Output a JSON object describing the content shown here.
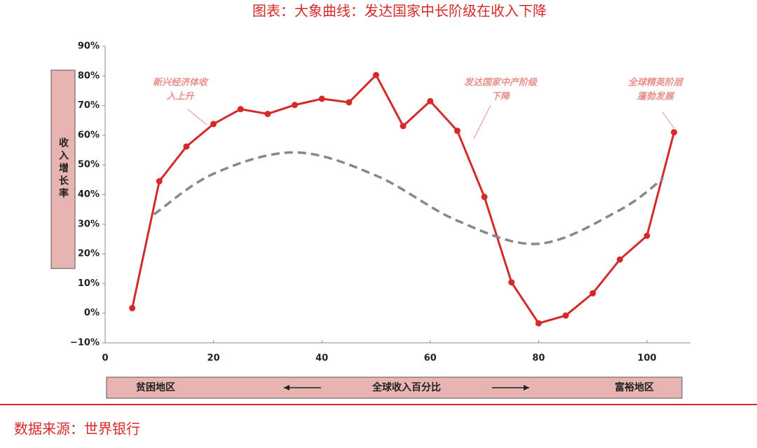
{
  "chart_data": {
    "type": "line",
    "title": "图表：大象曲线：发达国家中长阶级在收入下降",
    "ylabel": "收入增长率",
    "xlabel": "全球收入百分比",
    "x_left_label": "贫困地区",
    "x_right_label": "富裕地区",
    "source": "数据来源：世界银行",
    "xlim": [
      0,
      108
    ],
    "ylim": [
      -10,
      90
    ],
    "xticks": [
      0,
      20,
      40,
      60,
      80,
      100
    ],
    "yticks": [
      {
        "value": -10,
        "label": "−10%"
      },
      {
        "value": 0,
        "label": "0%"
      },
      {
        "value": 10,
        "label": "10%"
      },
      {
        "value": 20,
        "label": "20%"
      },
      {
        "value": 30,
        "label": "30%"
      },
      {
        "value": 40,
        "label": "40%"
      },
      {
        "value": 50,
        "label": "50%"
      },
      {
        "value": 60,
        "label": "60%"
      },
      {
        "value": 70,
        "label": "70%"
      },
      {
        "value": 80,
        "label": "80%"
      },
      {
        "value": 90,
        "label": "90%"
      }
    ],
    "series": [
      {
        "color": "#d42a2a",
        "style": "solid",
        "markers": true,
        "x": [
          5,
          10,
          15,
          20,
          25,
          30,
          35,
          40,
          45,
          50,
          55,
          60,
          65,
          70,
          75,
          80,
          85,
          90,
          95,
          100,
          105
        ],
        "values": [
          1.7,
          44.5,
          56.2,
          63.8,
          68.8,
          67.2,
          70.2,
          72.3,
          71.1,
          80.3,
          63.1,
          71.5,
          61.5,
          39.2,
          10.4,
          -3.4,
          -0.8,
          6.7,
          18.1,
          26.1,
          61
        ]
      },
      {
        "color": "#888888",
        "style": "dashed",
        "markers": false,
        "x": [
          9,
          20,
          35,
          50,
          65,
          80,
          95,
          103
        ],
        "values": [
          33.3,
          47,
          54.2,
          46.4,
          31.2,
          23.4,
          34.8,
          45.5
        ]
      }
    ],
    "annotations": [
      {
        "lines": [
          "新兴经济体收",
          "入上升"
        ]
      },
      {
        "lines": [
          "发达国家中产阶级",
          "下降"
        ]
      },
      {
        "lines": [
          "全球精英阶层",
          "蓬勃发展"
        ]
      }
    ]
  }
}
